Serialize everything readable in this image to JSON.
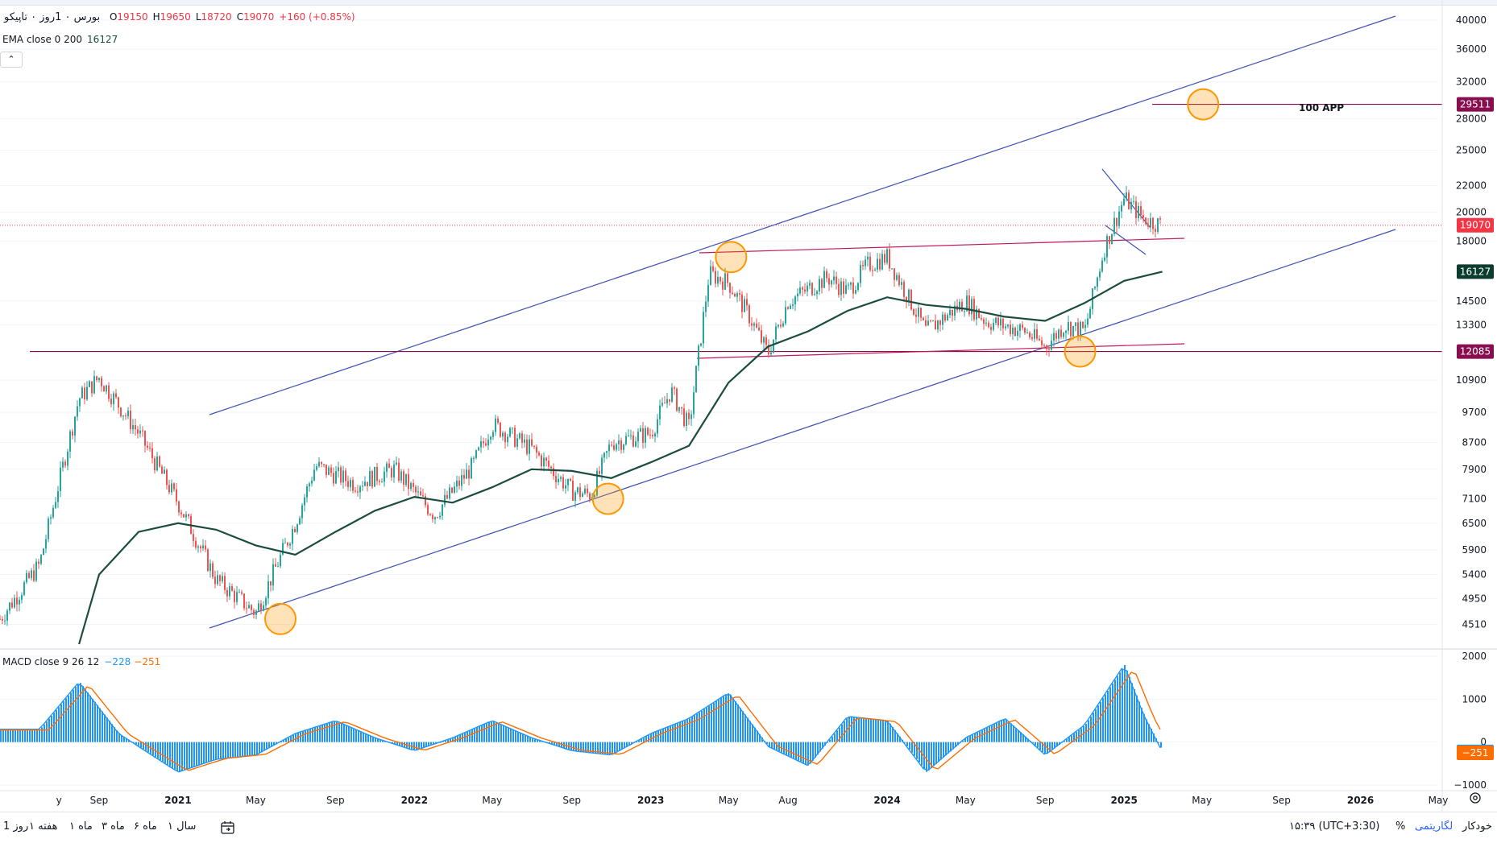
{
  "symbol": {
    "title": "بورس ۰ 1روز ۰ تاپیکو",
    "ohlc": [
      {
        "k": "O",
        "v": "19150"
      },
      {
        "k": "H",
        "v": "19650"
      },
      {
        "k": "L",
        "v": "18720"
      },
      {
        "k": "C",
        "v": "19070"
      },
      {
        "k": "",
        "v": "+160 (+0.85%)"
      }
    ]
  },
  "ema_legend": {
    "label": "EMA close 0 200",
    "value": "16127"
  },
  "collapse_label": "⌃",
  "macd_legend": {
    "label": "MACD close 9 26 12",
    "macd": "−228",
    "signal": "−251"
  },
  "price_axis_ticks": [
    "40000",
    "36000",
    "32000",
    "28000",
    "25000",
    "22000",
    "20000",
    "18000",
    "14500",
    "13300",
    "10900",
    "9700",
    "8700",
    "7900",
    "7100",
    "6500",
    "5900",
    "5400",
    "4950",
    "4510"
  ],
  "price_axis_badges": [
    {
      "value": "29511",
      "color": "#880e4f"
    },
    {
      "value": "19070",
      "color": "#f23645"
    },
    {
      "value": "16127",
      "color": "#0b3d2e"
    },
    {
      "value": "12085",
      "color": "#880e4f"
    }
  ],
  "macd_axis_ticks": [
    "2000",
    "1000",
    "0",
    "−1000"
  ],
  "macd_axis_badges": [
    {
      "value": "−228",
      "color": "#2196f3"
    },
    {
      "value": "−251",
      "color": "#ff6d00"
    }
  ],
  "time_axis": [
    "y",
    "Sep",
    "2021",
    "May",
    "Sep",
    "2022",
    "May",
    "Sep",
    "2023",
    "May",
    "Aug",
    "2024",
    "May",
    "Sep",
    "2025",
    "May",
    "Sep",
    "2026",
    "May"
  ],
  "annotation_text": "100 APP",
  "ranges": [
    "1 روز",
    "۱ هفته",
    "۱ ماه",
    "۳ ماه",
    "۶ ماه",
    "۱ سال"
  ],
  "bottom_right": {
    "time": "۱۵:۳۹ (UTC+3:30)",
    "percent": "%",
    "log": "لگاریتمی",
    "auto": "خودکار"
  },
  "colors": {
    "up": "#26a69a",
    "down": "#ef5350",
    "ema": "#1b4d3e",
    "channel": "#3f51b5",
    "level": "#880e4f",
    "trend": "#c2185b",
    "circle": "#ff9800",
    "macd": "#2196f3",
    "signal": "#ff6d00",
    "hist": "#2196f3"
  },
  "chart_data": {
    "type": "line",
    "title": "بورس ۰ 1روز ۰ تاپیکو",
    "y_scale": "log",
    "ylim": [
      4200,
      40000
    ],
    "last": {
      "open": 19150,
      "high": 19650,
      "low": 18720,
      "close": 19070,
      "change": "+160 (+0.85%)"
    },
    "series": [
      {
        "name": "close",
        "x": [
          "2020-04",
          "2020-06",
          "2020-08",
          "2020-09",
          "2020-11",
          "2021-01",
          "2021-03",
          "2021-05",
          "2021-07",
          "2021-08",
          "2021-10",
          "2021-12",
          "2022-02",
          "2022-04",
          "2022-05",
          "2022-07",
          "2022-09",
          "2022-10",
          "2022-11",
          "2023-01",
          "2023-02",
          "2023-03",
          "2023-04",
          "2023-05",
          "2023-06",
          "2023-07",
          "2023-08",
          "2023-10",
          "2023-11",
          "2023-12",
          "2024-01",
          "2024-03",
          "2024-05",
          "2024-06",
          "2024-08",
          "2024-09",
          "2024-10",
          "2024-11",
          "2024-12",
          "2025-01",
          "2025-02",
          "2025-03"
        ],
        "y": [
          4600,
          5600,
          10200,
          11000,
          9000,
          7000,
          5300,
          4700,
          6500,
          8000,
          7500,
          7900,
          6700,
          8000,
          9300,
          8500,
          7300,
          7200,
          8700,
          9000,
          10500,
          9200,
          16000,
          15500,
          13800,
          12000,
          14500,
          15800,
          15000,
          16500,
          17000,
          13000,
          14500,
          13500,
          13000,
          12300,
          13300,
          13000,
          17500,
          21000,
          19500,
          19070
        ]
      },
      {
        "name": "EMA 200",
        "x": [
          "2020-08",
          "2020-09",
          "2020-11",
          "2021-01",
          "2021-03",
          "2021-05",
          "2021-07",
          "2021-09",
          "2021-11",
          "2022-01",
          "2022-03",
          "2022-05",
          "2022-07",
          "2022-09",
          "2022-11",
          "2023-01",
          "2023-03",
          "2023-05",
          "2023-07",
          "2023-09",
          "2023-11",
          "2024-01",
          "2024-03",
          "2024-05",
          "2024-07",
          "2024-09",
          "2024-11",
          "2025-01",
          "2025-03"
        ],
        "y": [
          4200,
          5400,
          6300,
          6500,
          6350,
          6000,
          5800,
          6300,
          6800,
          7150,
          7000,
          7400,
          7900,
          7850,
          7650,
          8100,
          8600,
          10800,
          12300,
          13000,
          14000,
          14700,
          14300,
          14100,
          13700,
          13500,
          14400,
          15600,
          16127
        ]
      },
      {
        "name": "MACD",
        "x": [
          "2020-06",
          "2020-08",
          "2020-10",
          "2021-01",
          "2021-03",
          "2021-05",
          "2021-07",
          "2021-09",
          "2021-11",
          "2022-01",
          "2022-03",
          "2022-05",
          "2022-07",
          "2022-09",
          "2022-11",
          "2023-01",
          "2023-03",
          "2023-05",
          "2023-07",
          "2023-09",
          "2023-11",
          "2024-01",
          "2024-03",
          "2024-05",
          "2024-07",
          "2024-09",
          "2024-11",
          "2025-01",
          "2025-02",
          "2025-03"
        ],
        "y": [
          300,
          1400,
          200,
          -700,
          -400,
          -300,
          200,
          500,
          100,
          -200,
          100,
          500,
          100,
          -200,
          -300,
          200,
          550,
          1150,
          -100,
          -550,
          600,
          500,
          -700,
          100,
          550,
          -300,
          400,
          1800,
          600,
          -228
        ]
      },
      {
        "name": "Signal",
        "x": [
          "2025-03"
        ],
        "y": [
          -251
        ]
      }
    ],
    "levels": [
      29511,
      19070,
      16127,
      12085
    ],
    "annotations": [
      {
        "text": "100 APP",
        "value": 29511
      }
    ],
    "macd_ylim": [
      -1000,
      2000
    ]
  }
}
